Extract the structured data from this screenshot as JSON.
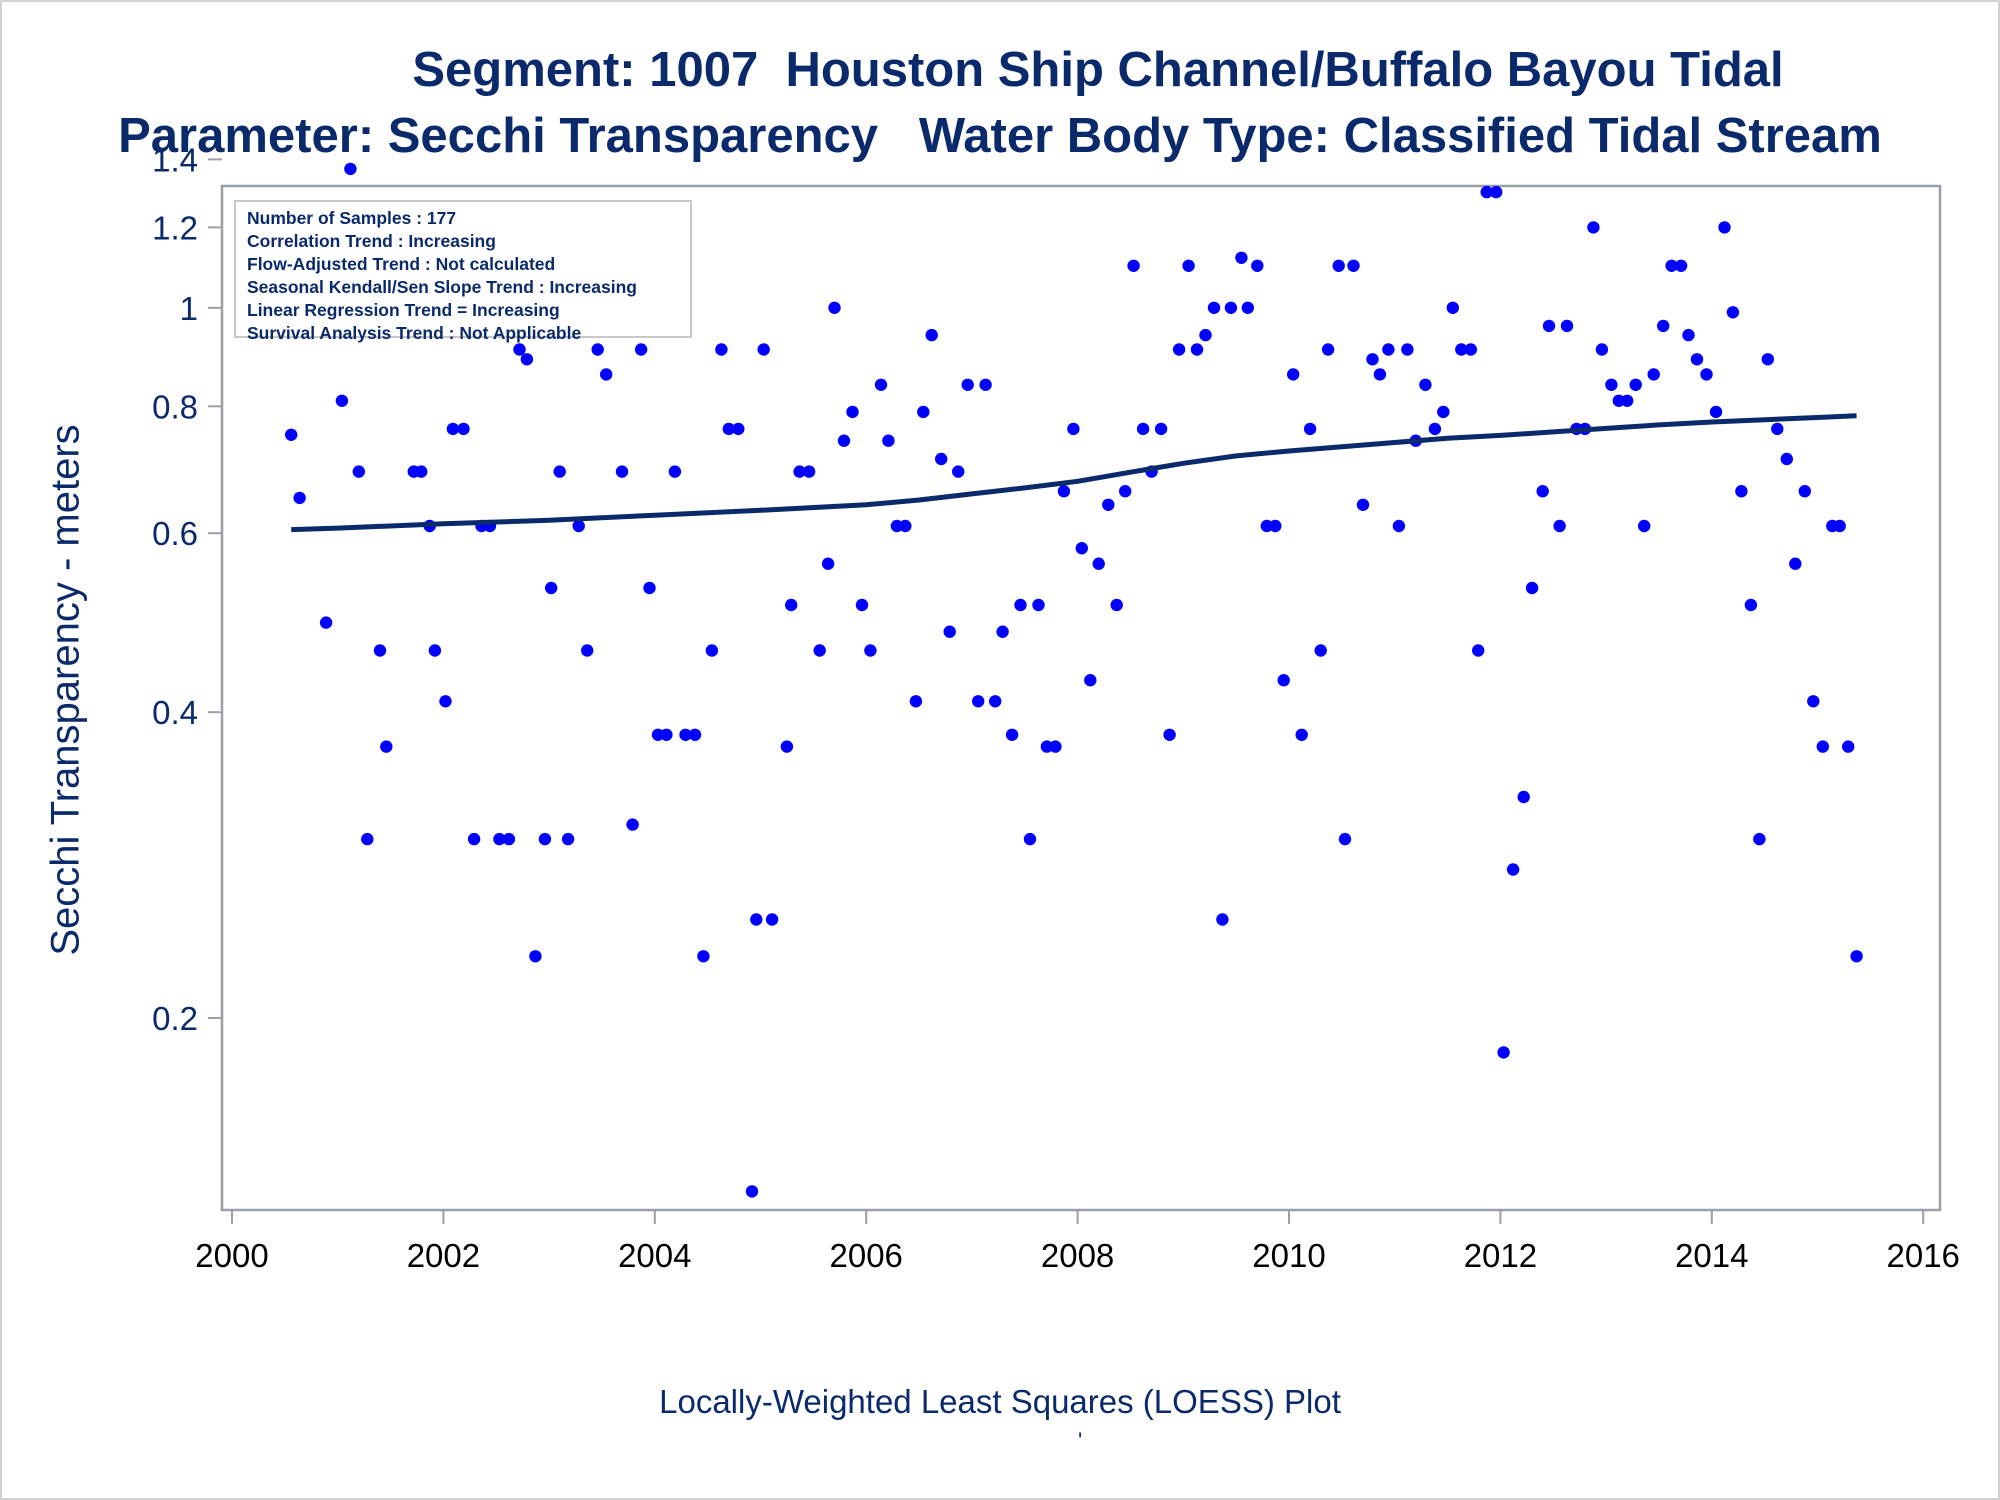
{
  "titles": {
    "line1": "Segment: 1007  Houston Ship Channel/Buffalo Bayou Tidal",
    "line2": "Parameter: Secchi Transparency   Water Body Type: Classified Tidal Stream"
  },
  "y_axis_label": "Secchi Transparency - meters",
  "footnote": "Locally-Weighted Least Squares (LOESS) Plot",
  "footnote_mark": "'",
  "stats_box": [
    "Number of Samples : 177",
    "Correlation Trend : Increasing",
    "Flow-Adjusted Trend : Not calculated",
    "Seasonal Kendall/Sen Slope Trend : Increasing",
    "Linear Regression Trend = Increasing",
    "Survival Analysis Trend : Not Applicable"
  ],
  "colors": {
    "text": "#0b2a6b",
    "points": "#0000ff",
    "trend_line": "#0b2a6b",
    "frame": "#9aa0a6"
  },
  "chart_data": {
    "type": "scatter",
    "title": "Segment: 1007  Houston Ship Channel/Buffalo Bayou Tidal",
    "ylabel": "Secchi Transparency - meters",
    "xlabel": "",
    "y_scale": "log",
    "xlim": [
      2000,
      2016
    ],
    "ylim": [
      0.128,
      1.45
    ],
    "x_ticks": [
      2000,
      2002,
      2004,
      2006,
      2008,
      2010,
      2012,
      2014,
      2016
    ],
    "x_tick_labels": [
      "2000",
      "2002",
      "2004",
      "2006",
      "2008",
      "2010",
      "2012",
      "2014",
      "2016"
    ],
    "y_ticks": [
      0.2,
      0.4,
      0.6,
      0.8,
      1.0,
      1.2,
      1.4
    ],
    "y_tick_labels": [
      "0.2",
      "0.4",
      "0.6",
      "0.8",
      "1",
      "1.2",
      "1.4"
    ],
    "legend": "top-left",
    "grid": false,
    "series": [
      {
        "type": "scatter",
        "points": [
          [
            2000.56,
            0.75
          ],
          [
            2000.64,
            0.65
          ],
          [
            2000.89,
            0.49
          ],
          [
            2000.96,
            1.07
          ],
          [
            2001.04,
            0.81
          ],
          [
            2001.12,
            1.37
          ],
          [
            2001.2,
            0.69
          ],
          [
            2001.28,
            0.3
          ],
          [
            2001.4,
            0.46
          ],
          [
            2001.46,
            0.37
          ],
          [
            2001.58,
            1.14
          ],
          [
            2001.63,
            1.22
          ],
          [
            2001.72,
            0.69
          ],
          [
            2001.79,
            0.69
          ],
          [
            2001.87,
            0.61
          ],
          [
            2001.92,
            0.46
          ],
          [
            2002.02,
            0.41
          ],
          [
            2002.09,
            0.76
          ],
          [
            2002.19,
            0.76
          ],
          [
            2002.29,
            0.3
          ],
          [
            2002.36,
            0.61
          ],
          [
            2002.44,
            0.61
          ],
          [
            2002.53,
            0.3
          ],
          [
            2002.62,
            0.3
          ],
          [
            2002.72,
            0.91
          ],
          [
            2002.79,
            0.89
          ],
          [
            2002.87,
            0.23
          ],
          [
            2002.96,
            0.3
          ],
          [
            2003.02,
            0.53
          ],
          [
            2003.1,
            0.69
          ],
          [
            2003.18,
            0.3
          ],
          [
            2003.28,
            0.61
          ],
          [
            2003.36,
            0.46
          ],
          [
            2003.46,
            0.91
          ],
          [
            2003.54,
            0.86
          ],
          [
            2003.63,
            1.14
          ],
          [
            2003.69,
            0.69
          ],
          [
            2003.79,
            0.31
          ],
          [
            2003.87,
            0.91
          ],
          [
            2003.95,
            0.53
          ],
          [
            2004.03,
            0.38
          ],
          [
            2004.11,
            0.38
          ],
          [
            2004.19,
            0.69
          ],
          [
            2004.29,
            0.38
          ],
          [
            2004.38,
            0.38
          ],
          [
            2004.46,
            0.23
          ],
          [
            2004.54,
            0.46
          ],
          [
            2004.63,
            0.91
          ],
          [
            2004.7,
            0.76
          ],
          [
            2004.79,
            0.76
          ],
          [
            2004.92,
            0.135
          ],
          [
            2004.96,
            0.25
          ],
          [
            2005.03,
            0.91
          ],
          [
            2005.11,
            0.25
          ],
          [
            2005.25,
            0.37
          ],
          [
            2005.29,
            0.51
          ],
          [
            2005.37,
            0.69
          ],
          [
            2005.46,
            0.69
          ],
          [
            2005.56,
            0.46
          ],
          [
            2005.64,
            0.56
          ],
          [
            2005.7,
            1.0
          ],
          [
            2005.79,
            0.74
          ],
          [
            2005.87,
            0.79
          ],
          [
            2005.96,
            0.51
          ],
          [
            2006.04,
            0.46
          ],
          [
            2006.14,
            0.84
          ],
          [
            2006.21,
            0.74
          ],
          [
            2006.29,
            0.61
          ],
          [
            2006.37,
            0.61
          ],
          [
            2006.47,
            0.41
          ],
          [
            2006.54,
            0.79
          ],
          [
            2006.62,
            0.94
          ],
          [
            2006.71,
            0.71
          ],
          [
            2006.79,
            0.48
          ],
          [
            2006.87,
            0.69
          ],
          [
            2006.96,
            0.84
          ],
          [
            2007.06,
            0.41
          ],
          [
            2007.13,
            0.84
          ],
          [
            2007.22,
            0.41
          ],
          [
            2007.29,
            0.48
          ],
          [
            2007.38,
            0.38
          ],
          [
            2007.46,
            0.51
          ],
          [
            2007.55,
            0.3
          ],
          [
            2007.63,
            0.51
          ],
          [
            2007.71,
            0.37
          ],
          [
            2007.79,
            0.37
          ],
          [
            2007.87,
            0.66
          ],
          [
            2007.96,
            0.76
          ],
          [
            2008.04,
            0.58
          ],
          [
            2008.12,
            0.43
          ],
          [
            2008.2,
            0.56
          ],
          [
            2008.29,
            0.64
          ],
          [
            2008.37,
            0.51
          ],
          [
            2008.45,
            0.66
          ],
          [
            2008.53,
            1.1
          ],
          [
            2008.62,
            0.76
          ],
          [
            2008.7,
            0.69
          ],
          [
            2008.79,
            0.76
          ],
          [
            2008.87,
            0.38
          ],
          [
            2008.96,
            0.91
          ],
          [
            2009.05,
            1.1
          ],
          [
            2009.13,
            0.91
          ],
          [
            2009.21,
            0.94
          ],
          [
            2009.29,
            1.0
          ],
          [
            2009.37,
            0.25
          ],
          [
            2009.45,
            1.0
          ],
          [
            2009.55,
            1.12
          ],
          [
            2009.61,
            1.0
          ],
          [
            2009.7,
            1.1
          ],
          [
            2009.79,
            0.61
          ],
          [
            2009.87,
            0.61
          ],
          [
            2009.95,
            0.43
          ],
          [
            2010.04,
            0.86
          ],
          [
            2010.12,
            0.38
          ],
          [
            2010.2,
            0.76
          ],
          [
            2010.3,
            0.46
          ],
          [
            2010.37,
            0.91
          ],
          [
            2010.47,
            1.1
          ],
          [
            2010.53,
            0.3
          ],
          [
            2010.61,
            1.1
          ],
          [
            2010.7,
            0.64
          ],
          [
            2010.79,
            0.89
          ],
          [
            2010.86,
            0.86
          ],
          [
            2010.94,
            0.91
          ],
          [
            2011.04,
            0.61
          ],
          [
            2011.12,
            0.91
          ],
          [
            2011.2,
            0.74
          ],
          [
            2011.29,
            0.84
          ],
          [
            2011.38,
            0.76
          ],
          [
            2011.46,
            0.79
          ],
          [
            2011.55,
            1.0
          ],
          [
            2011.63,
            0.91
          ],
          [
            2011.72,
            0.91
          ],
          [
            2011.79,
            0.46
          ],
          [
            2011.87,
            1.3
          ],
          [
            2011.96,
            1.3
          ],
          [
            2012.03,
            0.185
          ],
          [
            2012.12,
            0.28
          ],
          [
            2012.22,
            0.33
          ],
          [
            2012.3,
            0.53
          ],
          [
            2012.4,
            0.66
          ],
          [
            2012.46,
            0.96
          ],
          [
            2012.56,
            0.61
          ],
          [
            2012.63,
            0.96
          ],
          [
            2012.72,
            0.76
          ],
          [
            2012.8,
            0.76
          ],
          [
            2012.88,
            1.2
          ],
          [
            2012.96,
            0.91
          ],
          [
            2013.05,
            0.84
          ],
          [
            2013.12,
            0.81
          ],
          [
            2013.2,
            0.81
          ],
          [
            2013.28,
            0.84
          ],
          [
            2013.36,
            0.61
          ],
          [
            2013.45,
            0.86
          ],
          [
            2013.54,
            0.96
          ],
          [
            2013.62,
            1.1
          ],
          [
            2013.71,
            1.1
          ],
          [
            2013.78,
            0.94
          ],
          [
            2013.86,
            0.89
          ],
          [
            2013.95,
            0.86
          ],
          [
            2014.04,
            0.79
          ],
          [
            2014.12,
            1.2
          ],
          [
            2014.2,
            0.99
          ],
          [
            2014.28,
            0.66
          ],
          [
            2014.37,
            0.51
          ],
          [
            2014.45,
            0.3
          ],
          [
            2014.53,
            0.89
          ],
          [
            2014.62,
            0.76
          ],
          [
            2014.71,
            0.71
          ],
          [
            2014.79,
            0.56
          ],
          [
            2014.88,
            0.66
          ],
          [
            2014.96,
            0.41
          ],
          [
            2015.05,
            0.37
          ],
          [
            2015.14,
            0.61
          ],
          [
            2015.21,
            0.61
          ],
          [
            2015.29,
            0.37
          ],
          [
            2015.37,
            0.23
          ]
        ]
      },
      {
        "type": "line",
        "name": "LOESS",
        "points": [
          [
            2000.56,
            0.605
          ],
          [
            2001.0,
            0.607
          ],
          [
            2002.0,
            0.613
          ],
          [
            2003.0,
            0.618
          ],
          [
            2004.0,
            0.625
          ],
          [
            2005.0,
            0.632
          ],
          [
            2006.0,
            0.64
          ],
          [
            2006.5,
            0.647
          ],
          [
            2007.0,
            0.656
          ],
          [
            2007.5,
            0.665
          ],
          [
            2008.0,
            0.675
          ],
          [
            2008.5,
            0.689
          ],
          [
            2009.0,
            0.703
          ],
          [
            2009.5,
            0.715
          ],
          [
            2010.0,
            0.723
          ],
          [
            2010.5,
            0.73
          ],
          [
            2011.0,
            0.737
          ],
          [
            2011.5,
            0.744
          ],
          [
            2012.0,
            0.749
          ],
          [
            2012.5,
            0.755
          ],
          [
            2013.0,
            0.761
          ],
          [
            2013.5,
            0.767
          ],
          [
            2014.0,
            0.772
          ],
          [
            2014.5,
            0.776
          ],
          [
            2015.0,
            0.78
          ],
          [
            2015.37,
            0.783
          ]
        ]
      }
    ]
  }
}
